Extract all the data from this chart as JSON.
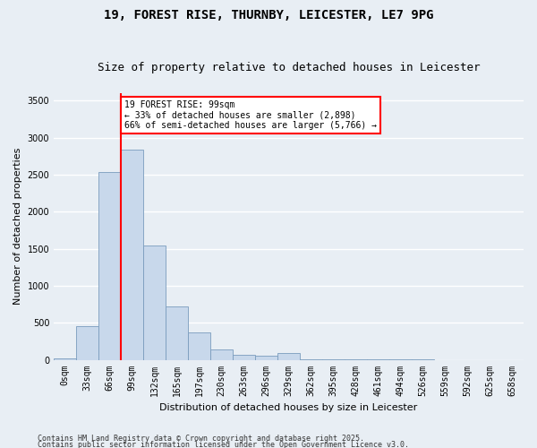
{
  "title_line1": "19, FOREST RISE, THURNBY, LEICESTER, LE7 9PG",
  "title_line2": "Size of property relative to detached houses in Leicester",
  "xlabel": "Distribution of detached houses by size in Leicester",
  "ylabel": "Number of detached properties",
  "bar_labels": [
    "0sqm",
    "33sqm",
    "66sqm",
    "99sqm",
    "132sqm",
    "165sqm",
    "197sqm",
    "230sqm",
    "263sqm",
    "296sqm",
    "329sqm",
    "362sqm",
    "395sqm",
    "428sqm",
    "461sqm",
    "494sqm",
    "526sqm",
    "559sqm",
    "592sqm",
    "625sqm",
    "658sqm"
  ],
  "bar_values": [
    20,
    460,
    2540,
    2840,
    1540,
    720,
    370,
    140,
    70,
    50,
    90,
    10,
    10,
    5,
    5,
    5,
    5,
    0,
    0,
    0,
    0
  ],
  "bar_color": "#c8d8eb",
  "bar_edge_color": "#7a9cbd",
  "red_line_index": 3,
  "annotation_text": "19 FOREST RISE: 99sqm\n← 33% of detached houses are smaller (2,898)\n66% of semi-detached houses are larger (5,766) →",
  "ylim": [
    0,
    3600
  ],
  "yticks": [
    0,
    500,
    1000,
    1500,
    2000,
    2500,
    3000,
    3500
  ],
  "footnote1": "Contains HM Land Registry data © Crown copyright and database right 2025.",
  "footnote2": "Contains public sector information licensed under the Open Government Licence v3.0.",
  "background_color": "#e8eef4",
  "plot_bg_color": "#e8eef4",
  "grid_color": "#ffffff",
  "title_fontsize": 10,
  "subtitle_fontsize": 9,
  "axis_label_fontsize": 8,
  "tick_fontsize": 7,
  "annot_fontsize": 7,
  "footnote_fontsize": 6
}
